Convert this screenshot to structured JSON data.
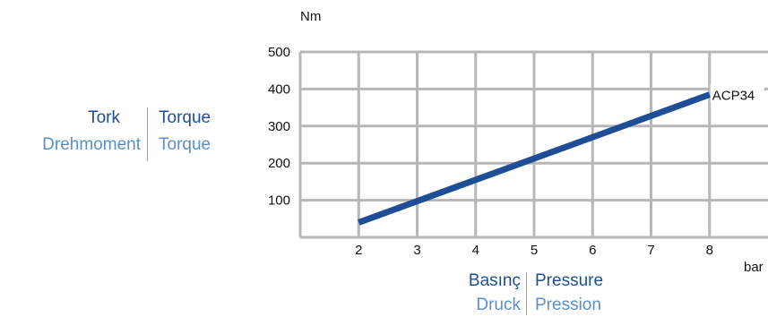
{
  "chart_data": {
    "type": "line",
    "xlabel": "bar",
    "ylabel": "Nm",
    "x_ticks": [
      "2",
      "3",
      "4",
      "5",
      "6",
      "7",
      "8"
    ],
    "y_ticks": [
      "100",
      "200",
      "300",
      "400",
      "500"
    ],
    "xlim": [
      1,
      9
    ],
    "ylim": [
      0,
      500
    ],
    "grid": true,
    "series": [
      {
        "name": "ACP34",
        "color": "#1f4e96",
        "x": [
          2,
          8
        ],
        "y": [
          40,
          385
        ]
      }
    ]
  },
  "labels": {
    "y_title_tr": "Tork",
    "y_title_en": "Torque",
    "y_title_de": "Drehmoment",
    "y_title_fr": "Torque",
    "x_title_tr": "Basınç",
    "x_title_en": "Pressure",
    "x_title_de": "Druck",
    "x_title_fr": "Pression"
  },
  "colors": {
    "primary": "#1f4e96",
    "secondary": "#5b8fc8",
    "grid": "#b7b7b7"
  }
}
